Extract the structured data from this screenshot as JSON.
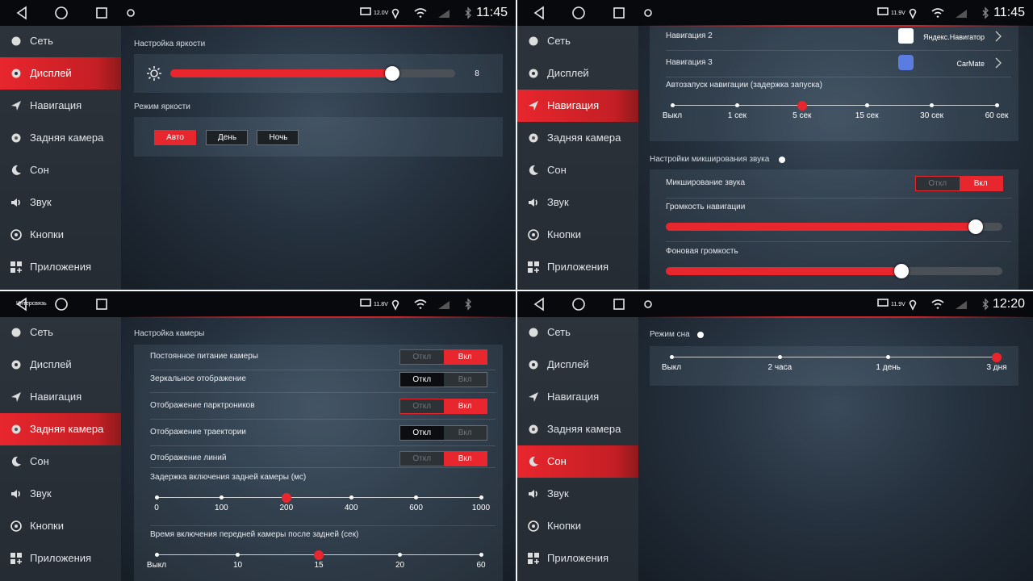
{
  "menu": [
    "Сеть",
    "Дисплей",
    "Навигация",
    "Задняя камера",
    "Сон",
    "Звук",
    "Кнопки",
    "Приложения"
  ],
  "toggle_options": [
    "Откл",
    "Вкл"
  ],
  "panels": [
    {
      "status": {
        "voltage": "12.0V",
        "time": "11:45"
      },
      "active_menu": 1,
      "brightness_title": "Настройка яркости",
      "brightness_percent": 78,
      "brightness_value": "8",
      "mode_title": "Режим яркости",
      "modes": [
        "Авто",
        "День",
        "Ночь"
      ],
      "mode_selected": 0
    },
    {
      "status": {
        "voltage": "11.9V",
        "time": "11:45"
      },
      "active_menu": 2,
      "apps": [
        {
          "label": "Навигация 2",
          "app": "Яндекс.Навигатор"
        },
        {
          "label": "Навигация 3",
          "app": "CarMate"
        }
      ],
      "autostart": {
        "label": "Автозапуск навигации (задержка запуска)",
        "stops": [
          "Выкл",
          "1 сек",
          "5 сек",
          "15 сек",
          "30 сек",
          "60 сек"
        ],
        "selected": 2
      },
      "mix_title": "Настройки микширования звука",
      "mix": {
        "label": "Микширование звука",
        "selected": 1
      },
      "sliders": [
        {
          "label": "Громкость навигации",
          "percent": 92
        },
        {
          "label": "Фоновая громкость",
          "percent": 70
        }
      ]
    },
    {
      "status": {
        "back_label": "Интерсвязь",
        "voltage": "11.8V"
      },
      "active_menu": 3,
      "title": "Настройка камеры",
      "toggles": [
        {
          "label": "Постоянное питание камеры",
          "selected": 1
        },
        {
          "label": "Зеркальное отображение",
          "selected": 0
        },
        {
          "label": "Отображение парктроников",
          "selected": 1
        },
        {
          "label": "Отображение траектории",
          "selected": 0
        },
        {
          "label": "Отображение линий",
          "selected": 1
        }
      ],
      "steppers": [
        {
          "label": "Задержка включения задней камеры (мс)",
          "stops": [
            "0",
            "100",
            "200",
            "400",
            "600",
            "1000"
          ],
          "selected": 2
        },
        {
          "label": "Время включения передней камеры после задней (сек)",
          "stops": [
            "Выкл",
            "10",
            "15",
            "20",
            "60"
          ],
          "selected": 2
        }
      ]
    },
    {
      "status": {
        "voltage": "11.9V",
        "time": "12:20"
      },
      "active_menu": 4,
      "title": "Режим сна",
      "stepper": {
        "stops": [
          "Выкл",
          "2 часа",
          "1 день",
          "3 дня"
        ],
        "selected": 3
      }
    }
  ]
}
